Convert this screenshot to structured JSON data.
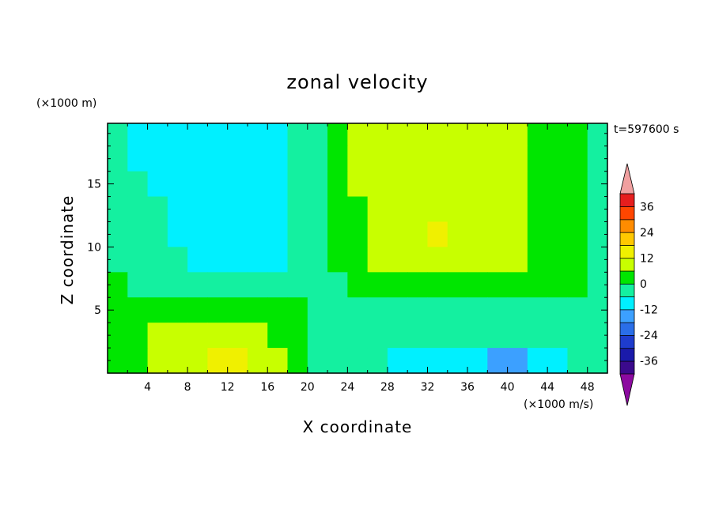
{
  "chart_data": {
    "type": "heatmap",
    "title": "zonal velocity",
    "xlabel": "X coordinate",
    "ylabel": "Z coordinate",
    "y_units": "(×1000 m)",
    "colorbar_units": "(×1000 m/s)",
    "time_label": "t=597600 s",
    "x_ticks": [
      "4",
      "8",
      "12",
      "16",
      "20",
      "24",
      "28",
      "32",
      "36",
      "40",
      "44",
      "48"
    ],
    "y_ticks": [
      "5",
      "10",
      "15"
    ],
    "xlim": [
      0,
      50
    ],
    "ylim": [
      0,
      19.8
    ],
    "colorbar": {
      "levels": [
        -42,
        -36,
        -30,
        -24,
        -18,
        -12,
        -6,
        0,
        6,
        12,
        18,
        24,
        30,
        36,
        42
      ],
      "labels": [
        "-36",
        "-24",
        "-12",
        "0",
        "12",
        "24",
        "36"
      ],
      "colors": [
        "#3b0a8c",
        "#1a1aaa",
        "#1e3ccd",
        "#2a6ee8",
        "#3ca0ff",
        "#00f0ff",
        "#14f0a0",
        "#00e600",
        "#c8ff00",
        "#f0f000",
        "#ffc800",
        "#ff8c00",
        "#ff4600",
        "#e61e1e"
      ],
      "under_color": "#8c0aa0",
      "over_color": "#f0a0a0"
    },
    "grid_x": [
      1,
      3,
      5,
      7,
      9,
      11,
      13,
      15,
      17,
      19,
      21,
      23,
      25,
      27,
      29,
      31,
      33,
      35,
      37,
      39,
      41,
      43,
      45,
      47,
      49
    ],
    "grid_z": [
      19,
      17,
      15,
      13,
      11,
      9,
      7,
      5,
      3,
      1
    ],
    "values": [
      [
        -3,
        -8,
        -10,
        -10,
        -10,
        -10,
        -10,
        -10,
        -10,
        -5,
        -5,
        2,
        8,
        8,
        8,
        8,
        8,
        8,
        8,
        8,
        8,
        3,
        3,
        3,
        -3
      ],
      [
        -3,
        -8,
        -10,
        -10,
        -10,
        -10,
        -10,
        -10,
        -10,
        -5,
        -5,
        2,
        8,
        8,
        8,
        8,
        8,
        8,
        8,
        8,
        8,
        3,
        3,
        3,
        -3
      ],
      [
        -3,
        -6,
        -8,
        -10,
        -10,
        -10,
        -10,
        -10,
        -8,
        -5,
        -3,
        2,
        8,
        8,
        8,
        8,
        8,
        8,
        8,
        8,
        8,
        3,
        3,
        3,
        -3
      ],
      [
        -3,
        -6,
        -6,
        -8,
        -10,
        -10,
        -10,
        -10,
        -8,
        -5,
        -3,
        2,
        3,
        8,
        8,
        8,
        8,
        8,
        8,
        8,
        8,
        3,
        3,
        3,
        -3
      ],
      [
        -3,
        -6,
        -6,
        -8,
        -8,
        -10,
        -10,
        -10,
        -8,
        -5,
        -3,
        2,
        3,
        8,
        8,
        8,
        14,
        8,
        8,
        8,
        8,
        3,
        3,
        3,
        -3
      ],
      [
        -3,
        -3,
        -6,
        -6,
        -8,
        -10,
        -10,
        -10,
        -8,
        -5,
        -3,
        2,
        3,
        8,
        8,
        8,
        8,
        8,
        8,
        8,
        8,
        3,
        3,
        3,
        -3
      ],
      [
        3,
        -3,
        -3,
        -6,
        -6,
        -6,
        -6,
        -6,
        -6,
        -5,
        -3,
        -3,
        3,
        3,
        3,
        3,
        3,
        3,
        3,
        3,
        3,
        3,
        3,
        3,
        -3
      ],
      [
        3,
        3,
        3,
        3,
        3,
        3,
        3,
        3,
        3,
        3,
        -3,
        -3,
        -3,
        -3,
        -3,
        -3,
        -3,
        -3,
        -3,
        -3,
        -3,
        -3,
        -3,
        -3,
        -3
      ],
      [
        3,
        3,
        8,
        8,
        8,
        8,
        8,
        8,
        3,
        3,
        -3,
        -3,
        -3,
        -6,
        -6,
        -6,
        -6,
        -3,
        -3,
        -3,
        -3,
        -3,
        -3,
        -3,
        -3
      ],
      [
        3,
        3,
        8,
        8,
        8,
        14,
        14,
        8,
        8,
        3,
        -3,
        -3,
        -3,
        -6,
        -10,
        -10,
        -10,
        -10,
        -10,
        -15,
        -15,
        -10,
        -10,
        -6,
        -3
      ]
    ]
  }
}
